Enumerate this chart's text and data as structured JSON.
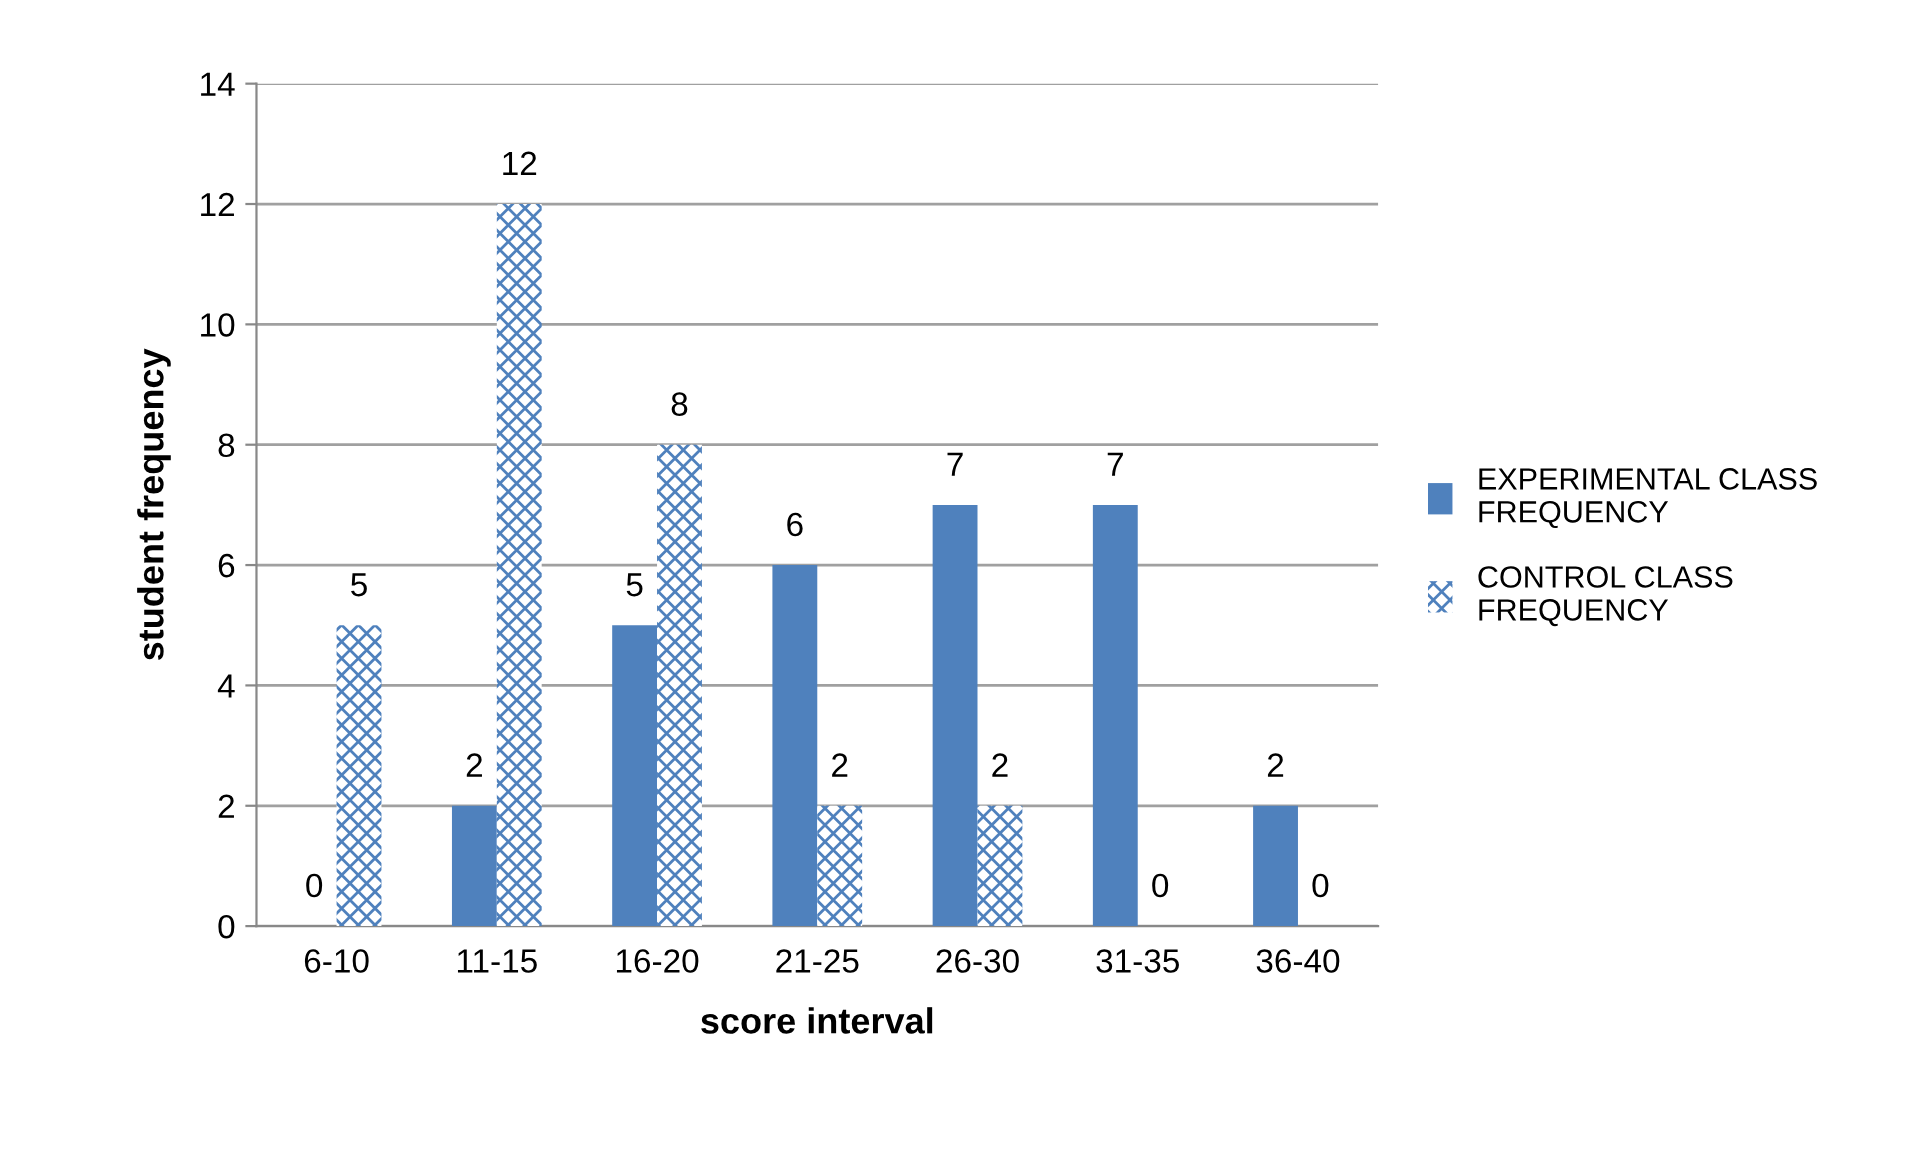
{
  "chart_data": {
    "type": "bar",
    "xlabel": "score interval",
    "ylabel": "student frequency",
    "categories": [
      "6-10",
      "11-15",
      "16-20",
      "21-25",
      "26-30",
      "31-35",
      "36-40"
    ],
    "series": [
      {
        "name": "EXPERIMENTAL CLASS FREQUENCY",
        "color": "#4f81bd",
        "values": [
          0,
          2,
          5,
          6,
          7,
          7,
          2
        ]
      },
      {
        "name": "CONTROL CLASS FREQUENCY",
        "color": "#4f81bd",
        "values": [
          5,
          12,
          8,
          2,
          2,
          0,
          0
        ]
      }
    ],
    "ylim": [
      0,
      14
    ],
    "yticks": [
      0,
      2,
      4,
      6,
      8,
      10,
      12,
      14
    ],
    "grid": "y",
    "legend": "right",
    "data_labels": true
  }
}
